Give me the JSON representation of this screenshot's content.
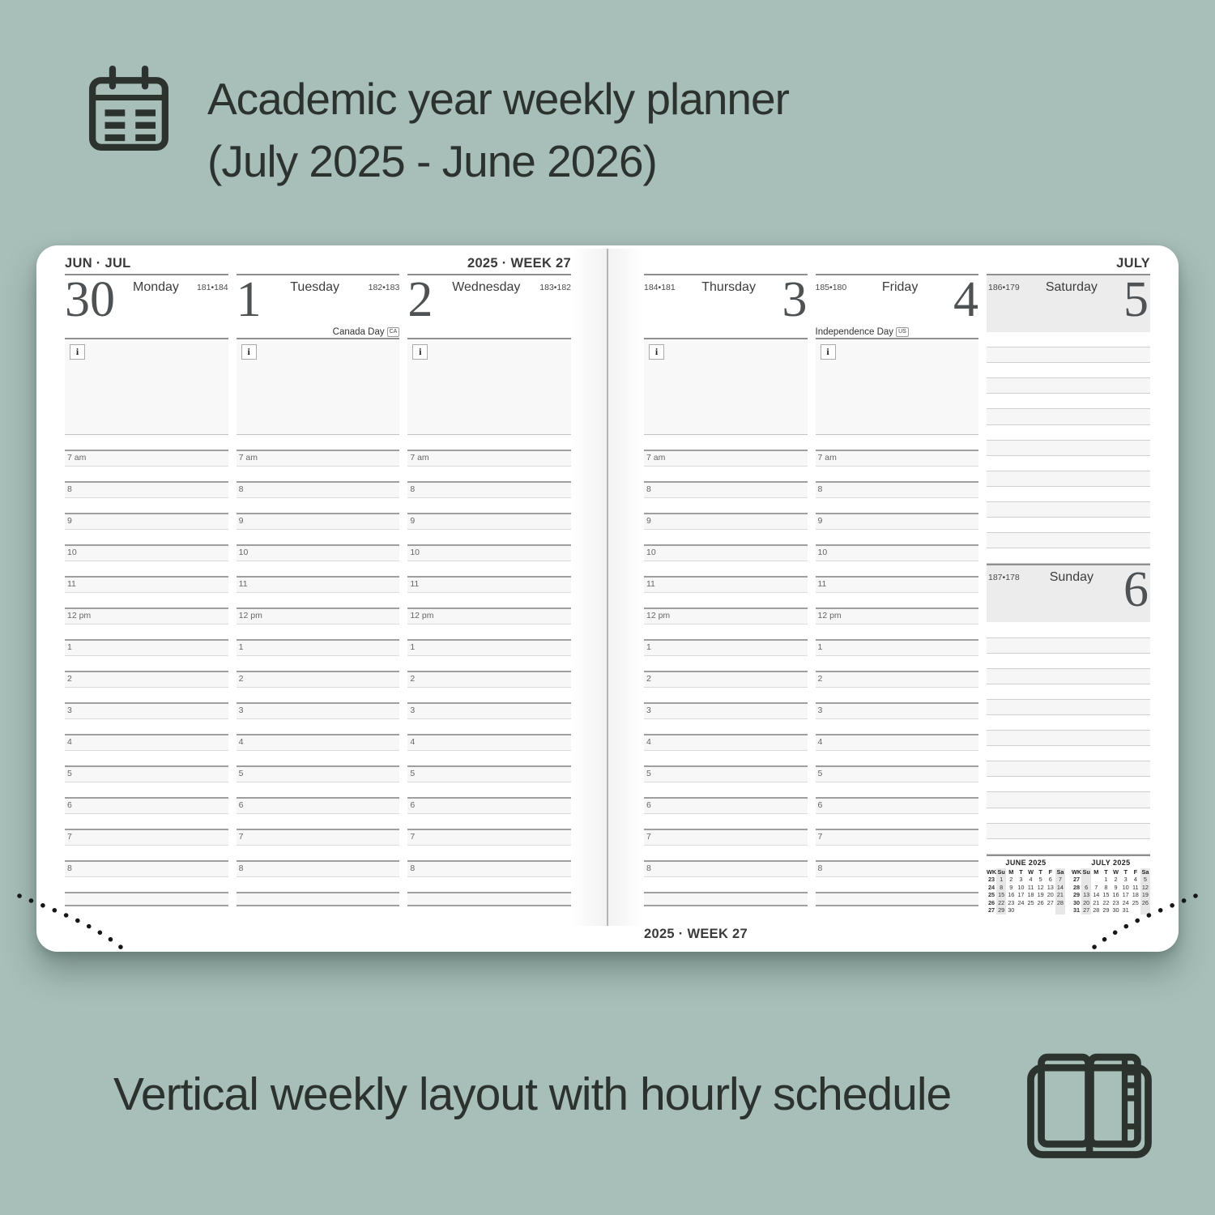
{
  "colors": {
    "background": "#a8beb8",
    "ink": "#2c332f",
    "page": "#ffffff",
    "line_strong": "#8f8f8f",
    "line_light": "#dadada",
    "fill_light": "#f7f7f7",
    "weekend_fill": "#ececec"
  },
  "icons": {
    "hero": "calendar-icon",
    "footer": "open-notebook-icon",
    "notes": "info-icon"
  },
  "header": {
    "title_line1": "Academic year weekly planner",
    "title_line2": "(July 2025 - June 2026)"
  },
  "caption": {
    "text": "Vertical weekly layout with hourly schedule"
  },
  "planner": {
    "info_icon": "i",
    "hours": [
      "7 am",
      "8",
      "9",
      "10",
      "11",
      "12 pm",
      "1",
      "2",
      "3",
      "4",
      "5",
      "6",
      "7",
      "8"
    ],
    "left_page": {
      "month_label": "JUN · JUL",
      "week_label": "2025 · WEEK 27",
      "days": [
        {
          "number": "30",
          "name": "Monday",
          "ordinal": "181•184",
          "holiday": "",
          "holiday_badge": ""
        },
        {
          "number": "1",
          "name": "Tuesday",
          "ordinal": "182•183",
          "holiday": "Canada Day",
          "holiday_badge": "CA"
        },
        {
          "number": "2",
          "name": "Wednesday",
          "ordinal": "183•182",
          "holiday": "",
          "holiday_badge": ""
        }
      ]
    },
    "right_page": {
      "month_label": "JULY",
      "week_label_bottom": "2025 · WEEK 27",
      "days": [
        {
          "number": "3",
          "name": "Thursday",
          "ordinal": "184•181",
          "holiday": "",
          "holiday_badge": ""
        },
        {
          "number": "4",
          "name": "Friday",
          "ordinal": "185•180",
          "holiday": "Independence Day",
          "holiday_badge": "US"
        }
      ],
      "weekend": [
        {
          "number": "5",
          "name": "Saturday",
          "ordinal": "186•179"
        },
        {
          "number": "6",
          "name": "Sunday",
          "ordinal": "187•178"
        }
      ]
    },
    "mini_calendars": [
      {
        "title": "JUNE 2025",
        "headers": [
          "WK",
          "Su",
          "M",
          "T",
          "W",
          "T",
          "F",
          "Sa"
        ],
        "rows": [
          [
            "23",
            "1",
            "2",
            "3",
            "4",
            "5",
            "6",
            "7"
          ],
          [
            "24",
            "8",
            "9",
            "10",
            "11",
            "12",
            "13",
            "14"
          ],
          [
            "25",
            "15",
            "16",
            "17",
            "18",
            "19",
            "20",
            "21"
          ],
          [
            "26",
            "22",
            "23",
            "24",
            "25",
            "26",
            "27",
            "28"
          ],
          [
            "27",
            "29",
            "30",
            "",
            "",
            "",
            "",
            ""
          ]
        ]
      },
      {
        "title": "JULY 2025",
        "headers": [
          "WK",
          "Su",
          "M",
          "T",
          "W",
          "T",
          "F",
          "Sa"
        ],
        "rows": [
          [
            "27",
            "",
            "",
            "1",
            "2",
            "3",
            "4",
            "5"
          ],
          [
            "28",
            "6",
            "7",
            "8",
            "9",
            "10",
            "11",
            "12"
          ],
          [
            "29",
            "13",
            "14",
            "15",
            "16",
            "17",
            "18",
            "19"
          ],
          [
            "30",
            "20",
            "21",
            "22",
            "23",
            "24",
            "25",
            "26"
          ],
          [
            "31",
            "27",
            "28",
            "29",
            "30",
            "31",
            "",
            ""
          ]
        ]
      }
    ]
  }
}
